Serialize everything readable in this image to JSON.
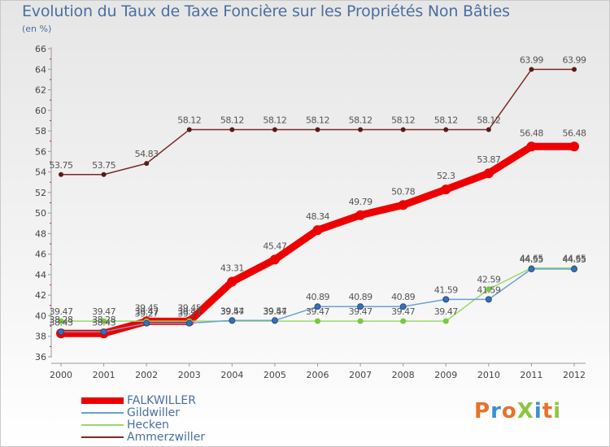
{
  "header": {
    "title": "Evolution du Taux de Taxe Foncière sur les Propriétés Non Bâties",
    "unit": "(en %)"
  },
  "logo": {
    "text": "ProXiti",
    "colors": [
      "#e8702a",
      "#3a8fd0",
      "#e8702a",
      "#8cc63f",
      "#3a8fd0",
      "#e8702a",
      "#8cc63f"
    ]
  },
  "chart_data": {
    "type": "line",
    "title": "Evolution du Taux de Taxe Foncière sur les Propriétés Non Bâties",
    "ylabel": "(en %)",
    "xlabel": "",
    "x": [
      "2000",
      "2001",
      "2002",
      "2003",
      "2004",
      "2005",
      "2006",
      "2007",
      "2008",
      "2009",
      "2010",
      "2011",
      "2012"
    ],
    "ylim": [
      36,
      66
    ],
    "yticks": [
      36,
      38,
      40,
      42,
      44,
      46,
      48,
      50,
      52,
      54,
      56,
      58,
      60,
      62,
      64,
      66
    ],
    "grid": false,
    "legend_position": "bottom-left",
    "series": [
      {
        "name": "FALKWILLER",
        "color": "#ee0000",
        "values": [
          38.28,
          38.28,
          39.45,
          39.45,
          43.31,
          45.47,
          48.34,
          49.79,
          50.78,
          52.3,
          53.87,
          56.48,
          56.48
        ],
        "labels": [
          "38.28",
          "38.28",
          "39.45",
          "39.45",
          "43.31",
          "45.47",
          "48.34",
          "49.79",
          "50.78",
          "52.3",
          "53.87",
          "56.48",
          "56.48"
        ]
      },
      {
        "name": "Gildwiller",
        "color": "#6d9fd2",
        "values": [
          38.43,
          38.43,
          39.27,
          39.27,
          39.54,
          39.54,
          40.89,
          40.89,
          40.89,
          41.59,
          41.59,
          44.55,
          44.55
        ],
        "labels": [
          "38.43",
          "38.43",
          "39.27",
          "39.27",
          "39.54",
          "39.54",
          "40.89",
          "40.89",
          "40.89",
          "41.59",
          "41.59",
          "44.55",
          "44.55"
        ]
      },
      {
        "name": "Hecken",
        "color": "#99d86b",
        "values": [
          39.47,
          39.47,
          39.47,
          39.47,
          39.47,
          39.47,
          39.47,
          39.47,
          39.47,
          39.47,
          42.59,
          44.65,
          44.65
        ],
        "labels": [
          "39.47",
          "39.47",
          "39.47",
          "39.47",
          "39.47",
          "39.47",
          "39.47",
          "39.47",
          "39.47",
          "39.47",
          "42.59",
          "44.65",
          "44.65"
        ]
      },
      {
        "name": "Ammerzwiller",
        "color": "#7a2a2a",
        "values": [
          53.75,
          53.75,
          54.83,
          58.12,
          58.12,
          58.12,
          58.12,
          58.12,
          58.12,
          58.12,
          58.12,
          63.99,
          63.99
        ],
        "labels": [
          "53.75",
          "53.75",
          "54.83",
          "58.12",
          "58.12",
          "58.12",
          "58.12",
          "58.12",
          "58.12",
          "58.12",
          "58.12",
          "63.99",
          "63.99"
        ]
      }
    ]
  }
}
